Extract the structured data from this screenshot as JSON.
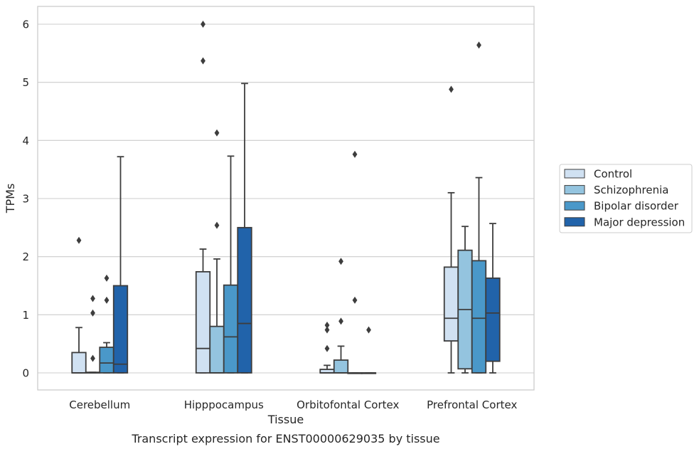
{
  "chart_data": {
    "type": "box",
    "title": "",
    "caption": "Transcript expression for ENST00000629035 by tissue",
    "xlabel": "Tissue",
    "ylabel": "TPMs",
    "ylim": [
      -0.3,
      6.3
    ],
    "yticks": [
      0,
      1,
      2,
      3,
      4,
      5,
      6
    ],
    "grid": true,
    "legend_position": "right",
    "categories": [
      "Cerebellum",
      "Hipppocampus",
      "Orbitofontal Cortex",
      "Prefrontal Cortex"
    ],
    "series": [
      {
        "name": "Control",
        "color": "#d0e1f2",
        "boxes": [
          {
            "q1": 0,
            "median": 0,
            "q3": 0.35,
            "whisker_low": 0,
            "whisker_high": 0.78,
            "outliers": [
              2.28
            ]
          },
          {
            "q1": 0,
            "median": 0.42,
            "q3": 1.74,
            "whisker_low": 0,
            "whisker_high": 2.13,
            "outliers": [
              5.37,
              6.0
            ]
          },
          {
            "q1": 0,
            "median": 0,
            "q3": 0.06,
            "whisker_low": 0,
            "whisker_high": 0.13,
            "outliers": [
              0.42,
              0.74,
              0.82
            ]
          },
          {
            "q1": 0.55,
            "median": 0.94,
            "q3": 1.82,
            "whisker_low": 0,
            "whisker_high": 3.1,
            "outliers": [
              4.88
            ]
          }
        ]
      },
      {
        "name": "Schizophrenia",
        "color": "#94c4df",
        "boxes": [
          {
            "q1": 0,
            "median": 0,
            "q3": 0.01,
            "whisker_low": 0,
            "whisker_high": 0.01,
            "outliers": [
              0.25,
              1.03,
              1.28
            ]
          },
          {
            "q1": 0,
            "median": 0,
            "q3": 0.8,
            "whisker_low": 0,
            "whisker_high": 1.96,
            "outliers": [
              2.54,
              4.13
            ]
          },
          {
            "q1": 0,
            "median": 0,
            "q3": 0.22,
            "whisker_low": 0,
            "whisker_high": 0.46,
            "outliers": [
              0.89,
              1.92
            ]
          },
          {
            "q1": 0.07,
            "median": 1.09,
            "q3": 2.11,
            "whisker_low": 0,
            "whisker_high": 2.52,
            "outliers": []
          }
        ]
      },
      {
        "name": "Bipolar disorder",
        "color": "#4a98c9",
        "boxes": [
          {
            "q1": 0,
            "median": 0.17,
            "q3": 0.44,
            "whisker_low": 0,
            "whisker_high": 0.52,
            "outliers": [
              1.25,
              1.63
            ]
          },
          {
            "q1": 0,
            "median": 0.62,
            "q3": 1.51,
            "whisker_low": 0,
            "whisker_high": 3.73,
            "outliers": []
          },
          {
            "q1": 0,
            "median": 0,
            "q3": 0,
            "whisker_low": 0,
            "whisker_high": 0,
            "outliers": [
              1.25,
              3.76
            ]
          },
          {
            "q1": 0,
            "median": 0.94,
            "q3": 1.93,
            "whisker_low": 0,
            "whisker_high": 3.36,
            "outliers": [
              5.64
            ]
          }
        ]
      },
      {
        "name": "Major depression",
        "color": "#2163aa",
        "boxes": [
          {
            "q1": 0,
            "median": 0.15,
            "q3": 1.5,
            "whisker_low": 0,
            "whisker_high": 3.72,
            "outliers": []
          },
          {
            "q1": 0,
            "median": 0.85,
            "q3": 2.5,
            "whisker_low": 0,
            "whisker_high": 4.98,
            "outliers": []
          },
          {
            "q1": 0,
            "median": 0,
            "q3": 0,
            "whisker_low": 0,
            "whisker_high": 0,
            "outliers": [
              0.74
            ]
          },
          {
            "q1": 0.2,
            "median": 1.03,
            "q3": 1.63,
            "whisker_low": 0,
            "whisker_high": 2.57,
            "outliers": []
          }
        ]
      }
    ]
  }
}
